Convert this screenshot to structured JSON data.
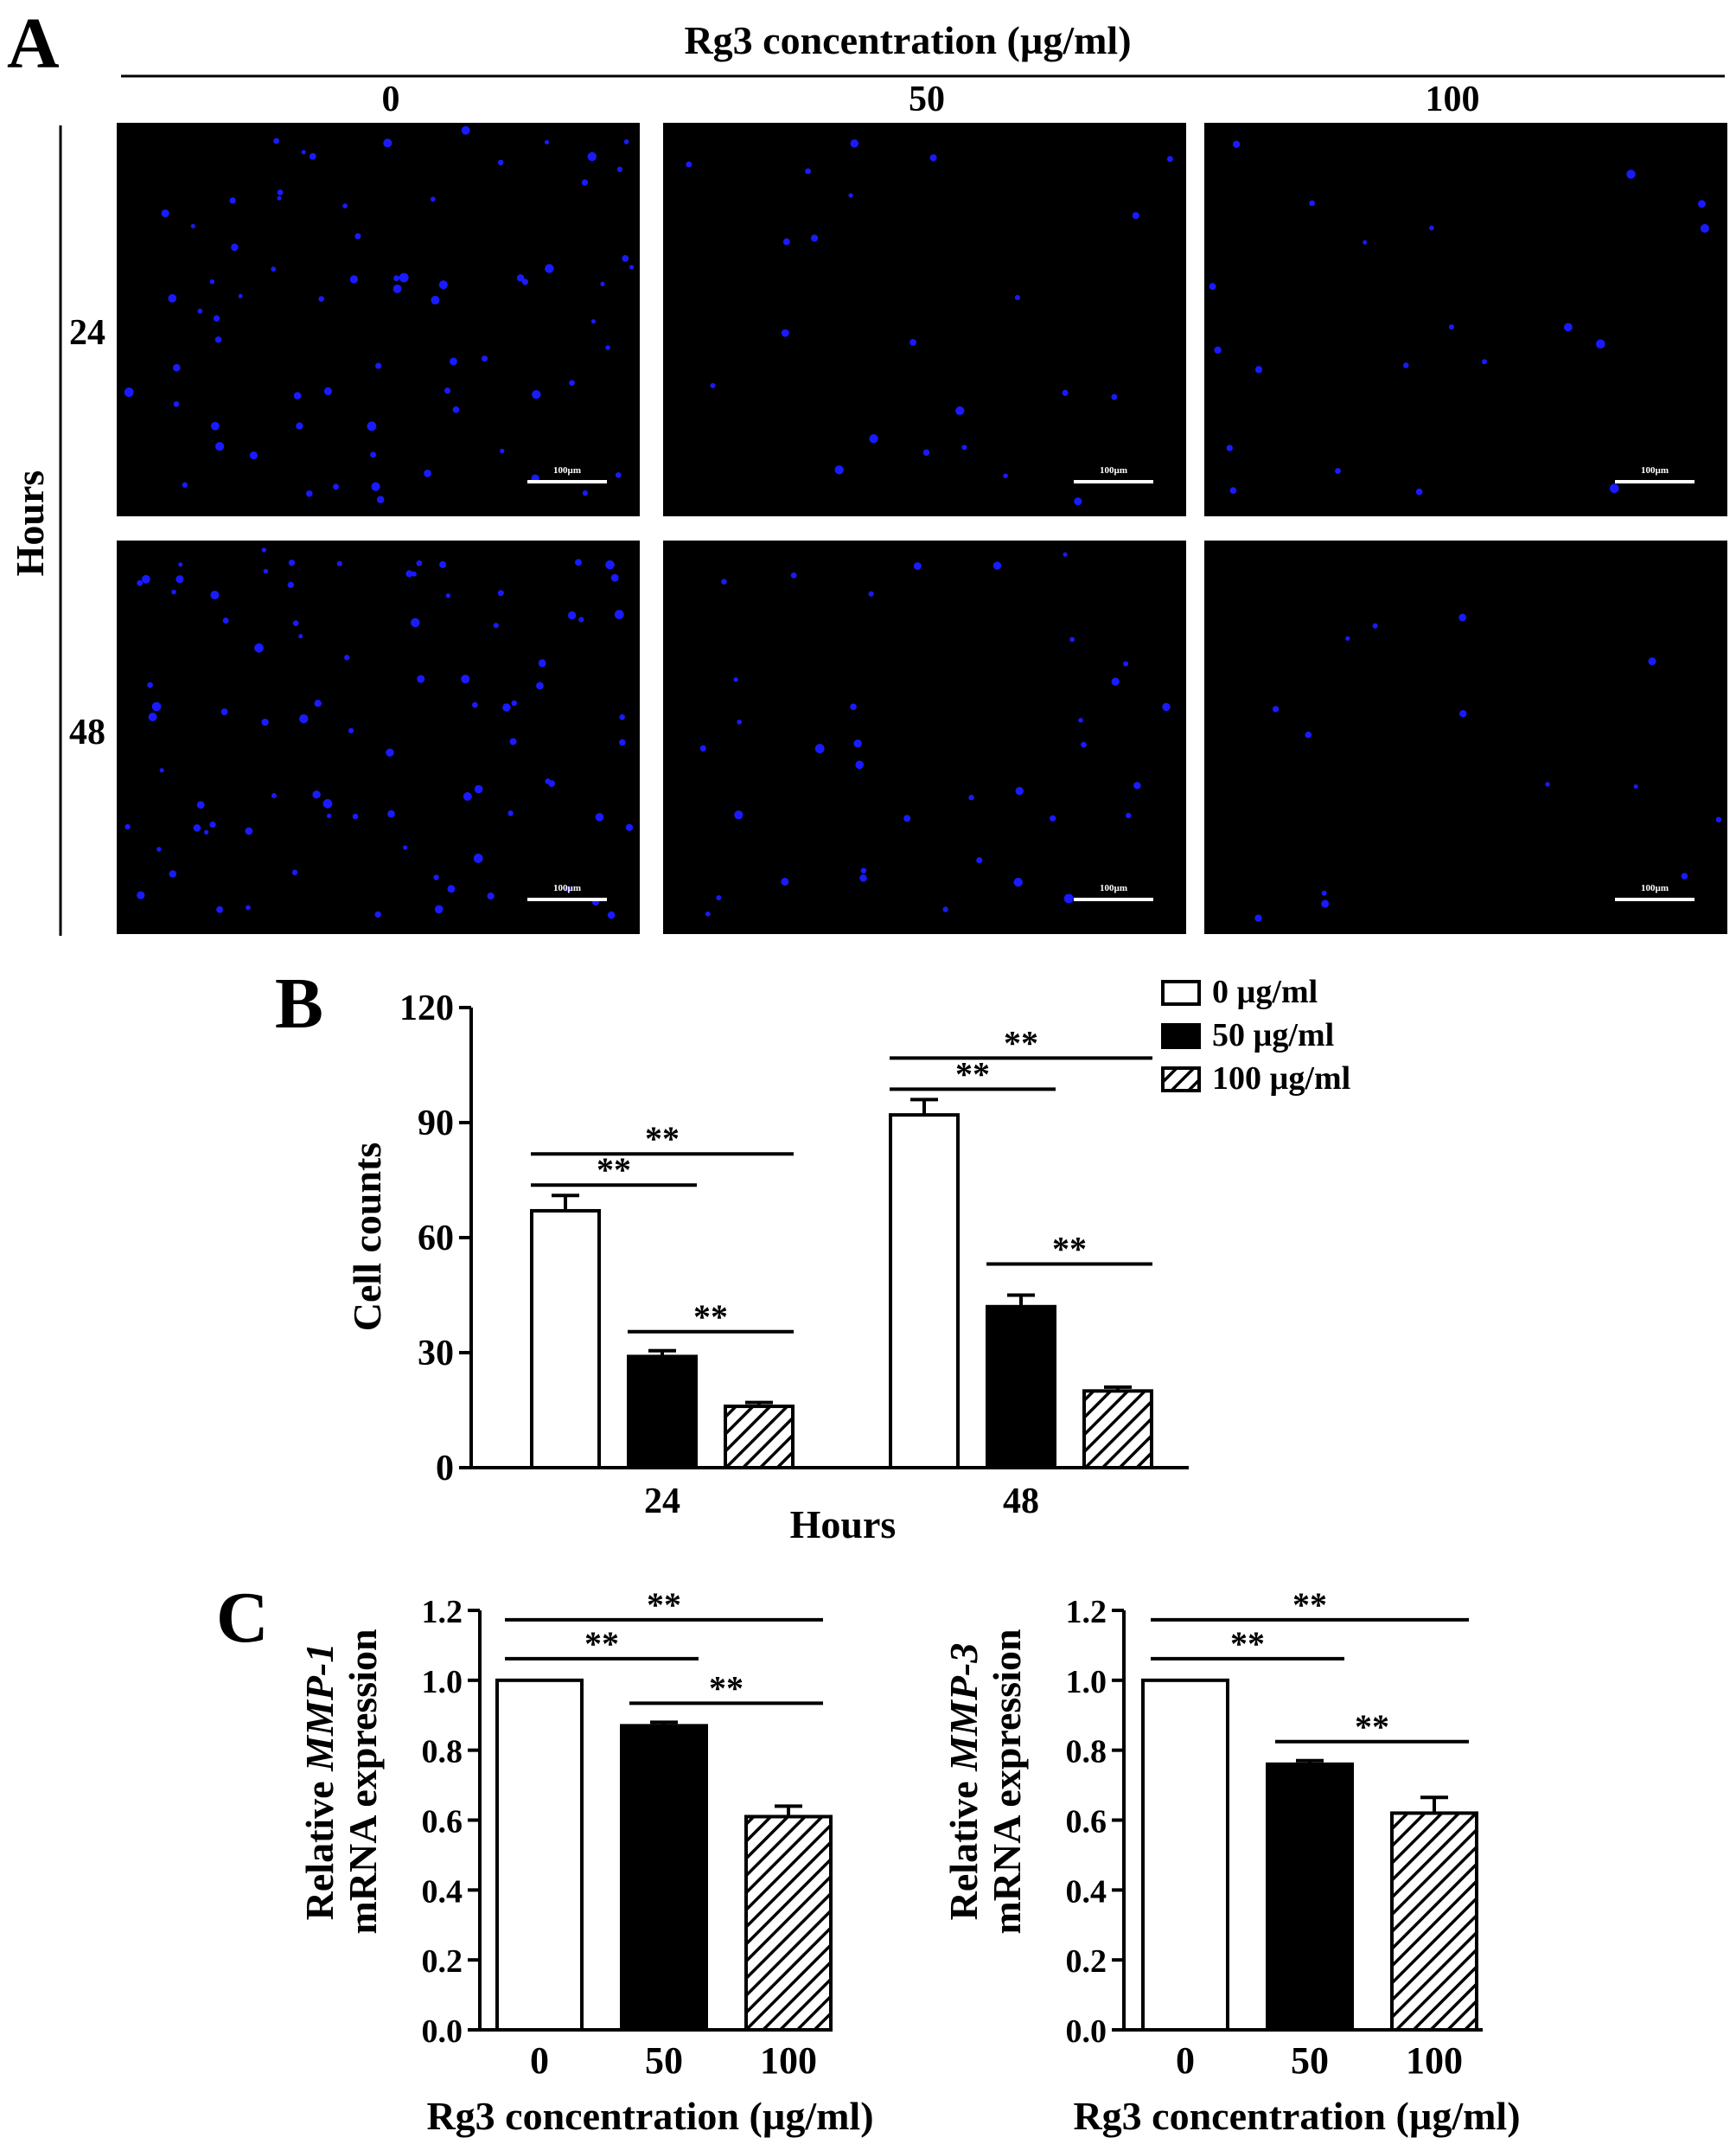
{
  "panel_labels": {
    "a": "A",
    "b": "B",
    "c": "C"
  },
  "panel_a": {
    "column_header": "Rg3 concentration (µg/ml)",
    "column_labels": [
      "0",
      "50",
      "100"
    ],
    "row_axis_label": "Hours",
    "row_labels": [
      "24",
      "48"
    ],
    "scale_bar_label": "100µm",
    "image_background": "#000000",
    "nuclei_color": "#1a1aff"
  },
  "chart_data": [
    {
      "id": "B",
      "type": "bar",
      "categories": [
        "24",
        "48"
      ],
      "xlabel": "Hours",
      "ylabel": "Cell counts",
      "ylim": [
        0,
        120
      ],
      "yticks": [
        "0",
        "30",
        "60",
        "90",
        "120"
      ],
      "series": [
        {
          "name": "0 µg/ml",
          "values": [
            67,
            92
          ],
          "errors": [
            4,
            4
          ],
          "fill": "open"
        },
        {
          "name": "50 µg/ml",
          "values": [
            29,
            42
          ],
          "errors": [
            1.5,
            3
          ],
          "fill": "solid"
        },
        {
          "name": "100 µg/ml",
          "values": [
            16,
            20
          ],
          "errors": [
            1,
            1
          ],
          "fill": "hatched"
        }
      ],
      "significance": "**",
      "legend_position": "top-right",
      "grid": false
    },
    {
      "id": "C-MMP1",
      "type": "bar",
      "categories": [
        "0",
        "50",
        "100"
      ],
      "xlabel": "Rg3 concentration (µg/ml)",
      "ylabel_prefix": "Relative ",
      "ylabel_gene": "MMP-1",
      "ylabel_line2": "mRNA expression",
      "ylim": [
        0,
        1.2
      ],
      "yticks": [
        "0.0",
        "0.2",
        "0.4",
        "0.6",
        "0.8",
        "1.0",
        "1.2"
      ],
      "values": [
        1.0,
        0.87,
        0.61
      ],
      "errors": [
        0,
        0.01,
        0.03
      ],
      "fills": [
        "open",
        "solid",
        "hatched"
      ],
      "significance": "**",
      "grid": false
    },
    {
      "id": "C-MMP3",
      "type": "bar",
      "categories": [
        "0",
        "50",
        "100"
      ],
      "xlabel": "Rg3 concentration (µg/ml)",
      "ylabel_prefix": "Relative ",
      "ylabel_gene": "MMP-3",
      "ylabel_line2": "mRNA expression",
      "ylim": [
        0,
        1.2
      ],
      "yticks": [
        "0.0",
        "0.2",
        "0.4",
        "0.6",
        "0.8",
        "1.0",
        "1.2"
      ],
      "values": [
        1.0,
        0.76,
        0.62
      ],
      "errors": [
        0,
        0.01,
        0.045
      ],
      "fills": [
        "open",
        "solid",
        "hatched"
      ],
      "significance": "**",
      "grid": false
    }
  ]
}
